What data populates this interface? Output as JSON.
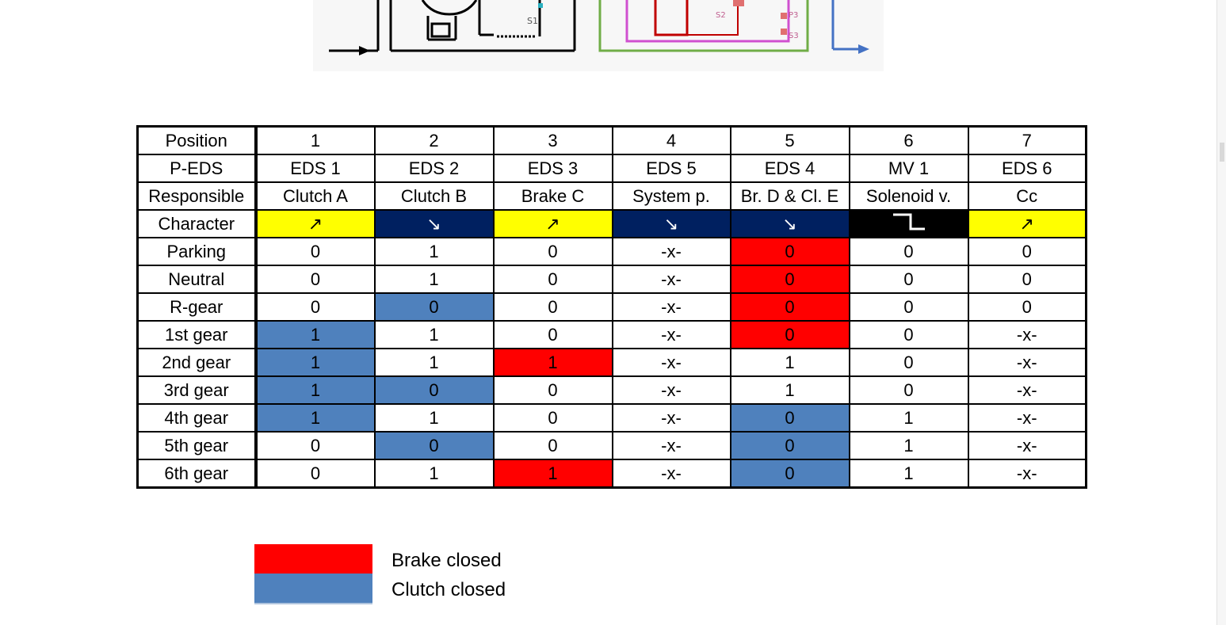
{
  "diagram": {
    "labels": [
      "S1",
      "S2",
      "P3",
      "S3"
    ],
    "colors": {
      "left_box": "#000000",
      "valve_box": "#70ad47",
      "inner_circuit": "#c00000",
      "magenta": "#d050d0",
      "arrow": "#4472c4"
    }
  },
  "table": {
    "header_rows": [
      {
        "label": "Position",
        "cells": [
          "1",
          "2",
          "3",
          "4",
          "5",
          "6",
          "7"
        ]
      },
      {
        "label": "P-EDS",
        "cells": [
          "EDS 1",
          "EDS 2",
          "EDS 3",
          "EDS 5",
          "EDS 4",
          "MV 1",
          "EDS 6"
        ]
      },
      {
        "label": "Responsible",
        "cells": [
          "Clutch A",
          "Clutch B",
          "Brake C",
          "System p.",
          "Br. D & Cl. E",
          "Solenoid v.",
          "Cc"
        ]
      }
    ],
    "character_row": {
      "label": "Character",
      "cells": [
        {
          "icon": "arrow-up-right-icon",
          "glyph": "↗",
          "fill": "yellow"
        },
        {
          "icon": "arrow-down-right-icon",
          "glyph": "↘",
          "fill": "navy"
        },
        {
          "icon": "arrow-up-right-icon",
          "glyph": "↗",
          "fill": "yellow"
        },
        {
          "icon": "arrow-down-right-icon",
          "glyph": "↘",
          "fill": "navy"
        },
        {
          "icon": "arrow-down-right-icon",
          "glyph": "↘",
          "fill": "navy"
        },
        {
          "icon": "step-down-icon",
          "glyph": "",
          "fill": "black"
        },
        {
          "icon": "arrow-up-right-icon",
          "glyph": "↗",
          "fill": "yellow"
        }
      ]
    },
    "gear_rows": [
      {
        "label": "Parking",
        "values": [
          "0",
          "1",
          "0",
          "-x-",
          "0",
          "0",
          "0"
        ],
        "fills": [
          "",
          "",
          "",
          "",
          "red",
          "",
          ""
        ]
      },
      {
        "label": "Neutral",
        "values": [
          "0",
          "1",
          "0",
          "-x-",
          "0",
          "0",
          "0"
        ],
        "fills": [
          "",
          "",
          "",
          "",
          "red",
          "",
          ""
        ]
      },
      {
        "label": "R-gear",
        "values": [
          "0",
          "0",
          "0",
          "-x-",
          "0",
          "0",
          "0"
        ],
        "fills": [
          "",
          "blue",
          "",
          "",
          "red",
          "",
          ""
        ]
      },
      {
        "label": "1st gear",
        "values": [
          "1",
          "1",
          "0",
          "-x-",
          "0",
          "0",
          "-x-"
        ],
        "fills": [
          "blue",
          "",
          "",
          "",
          "red",
          "",
          ""
        ]
      },
      {
        "label": "2nd gear",
        "values": [
          "1",
          "1",
          "1",
          "-x-",
          "1",
          "0",
          "-x-"
        ],
        "fills": [
          "blue",
          "",
          "red",
          "",
          "",
          "",
          ""
        ]
      },
      {
        "label": "3rd gear",
        "values": [
          "1",
          "0",
          "0",
          "-x-",
          "1",
          "0",
          "-x-"
        ],
        "fills": [
          "blue",
          "blue",
          "",
          "",
          "",
          "",
          ""
        ]
      },
      {
        "label": "4th gear",
        "values": [
          "1",
          "1",
          "0",
          "-x-",
          "0",
          "1",
          "-x-"
        ],
        "fills": [
          "blue",
          "",
          "",
          "",
          "blue",
          "",
          ""
        ]
      },
      {
        "label": "5th gear",
        "values": [
          "0",
          "0",
          "0",
          "-x-",
          "0",
          "1",
          "-x-"
        ],
        "fills": [
          "",
          "blue",
          "",
          "",
          "blue",
          "",
          ""
        ]
      },
      {
        "label": "6th gear",
        "values": [
          "0",
          "1",
          "1",
          "-x-",
          "0",
          "1",
          "-x-"
        ],
        "fills": [
          "",
          "",
          "red",
          "",
          "blue",
          "",
          ""
        ]
      }
    ]
  },
  "legend": {
    "brake": {
      "label": "Brake closed",
      "color": "#ff0000"
    },
    "clutch": {
      "label": "Clutch closed",
      "color": "#4f81bd"
    }
  }
}
